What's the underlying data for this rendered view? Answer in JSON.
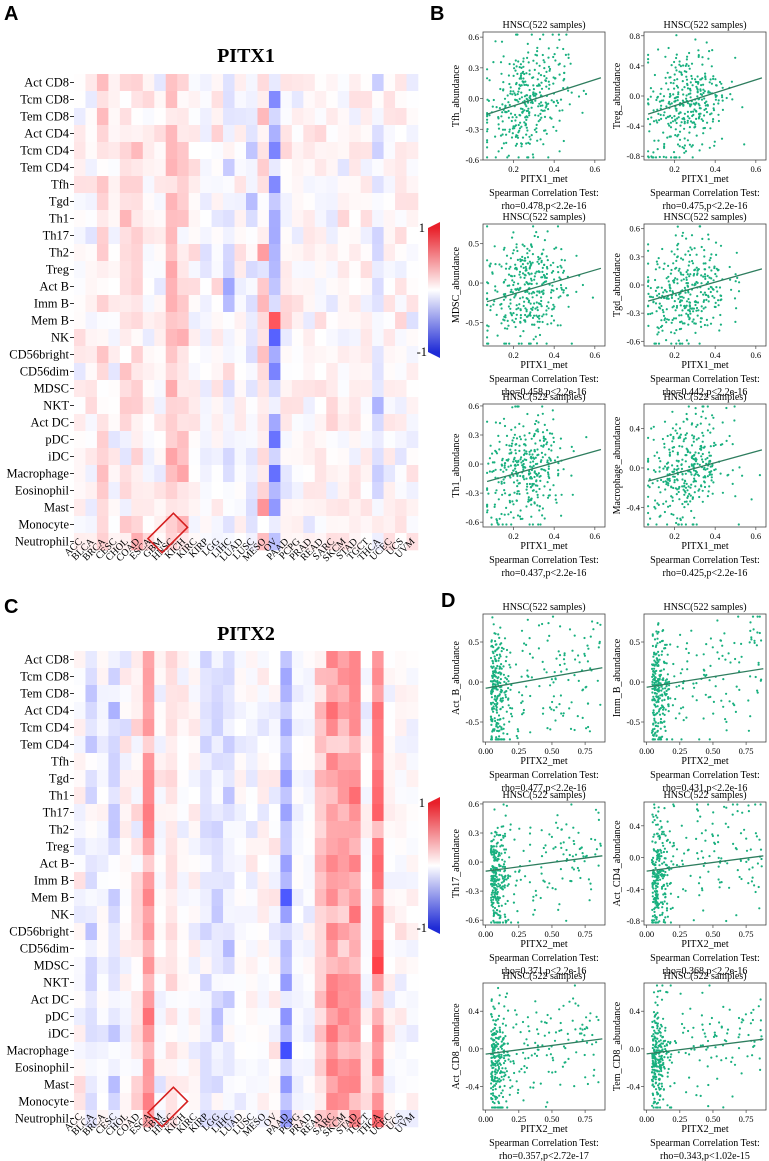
{
  "panels": {
    "A": "A",
    "B": "B",
    "C": "C",
    "D": "D"
  },
  "heatmaps": [
    {
      "id": "pitx1",
      "title": "PITX1",
      "highlight": "HNSC",
      "legend_max": "1",
      "legend_min": "-1",
      "rows": [
        "Act CD8",
        "Tcm CD8",
        "Tem CD8",
        "Act CD4",
        "Tcm CD4",
        "Tem CD4",
        "Tfh",
        "Tgd",
        "Th1",
        "Th17",
        "Th2",
        "Treg",
        "Act B",
        "Imm B",
        "Mem B",
        "NK",
        "CD56bright",
        "CD56dim",
        "MDSC",
        "NKT",
        "Act DC",
        "pDC",
        "iDC",
        "Macrophage",
        "Eosinophil",
        "Mast",
        "Monocyte",
        "Neutrophil"
      ],
      "cols": [
        "ACC",
        "BLCA",
        "BRCA",
        "CESC",
        "CHOL",
        "COAD",
        "ESCA",
        "GBM",
        "HNSC",
        "KICH",
        "KIRC",
        "KIRP",
        "LGG",
        "LIHC",
        "LUAD",
        "LUSC",
        "MESO",
        "OV",
        "PAAD",
        "PCPG",
        "PRAD",
        "READ",
        "SARC",
        "SKCM",
        "STAD",
        "TGCT",
        "THCA",
        "UCEC",
        "UCS",
        "UVM"
      ]
    },
    {
      "id": "pitx2",
      "title": "PITX2",
      "highlight": "HNSC",
      "legend_max": "1",
      "legend_min": "-1",
      "rows": [
        "Act CD8",
        "Tcm CD8",
        "Tem CD8",
        "Act CD4",
        "Tcm CD4",
        "Tem CD4",
        "Tfh",
        "Tgd",
        "Th1",
        "Th17",
        "Th2",
        "Treg",
        "Act B",
        "Imm B",
        "Mem B",
        "NK",
        "CD56bright",
        "CD56dim",
        "MDSC",
        "NKT",
        "Act DC",
        "pDC",
        "iDC",
        "Macrophage",
        "Eosinophil",
        "Mast",
        "Monocyte",
        "Neutrophil"
      ],
      "cols": [
        "ACC",
        "BLCA",
        "BRCA",
        "CESC",
        "CHOL",
        "COAD",
        "ESCA",
        "GBM",
        "HNSC",
        "KICH",
        "KIRC",
        "KIRP",
        "LGG",
        "LIHC",
        "LUAD",
        "LUSC",
        "MESO",
        "OV",
        "PAAD",
        "PCPG",
        "PRAD",
        "READ",
        "SARC",
        "SKCM",
        "STAD",
        "TGCT",
        "THCA",
        "UCEC",
        "UCS",
        "UVM"
      ]
    }
  ],
  "scatters": [
    {
      "id": "b1",
      "title": "HNSC(522 samples)",
      "xlabel": "PITX1_met",
      "ylabel": "Tfh_abundance",
      "test": "Spearman Correlation Test:",
      "stat": "rho=0.478,p<2.2e-16",
      "xticks": [
        "0.2",
        "0.4",
        "0.6"
      ],
      "yticks": [
        "-0.6",
        "-0.3",
        "0.0",
        "0.3",
        "0.6"
      ]
    },
    {
      "id": "b2",
      "title": "HNSC(522 samples)",
      "xlabel": "PITX1_met",
      "ylabel": "Treg_abundance",
      "test": "Spearman Correlation Test:",
      "stat": "rho=0.475,p<2.2e-16",
      "xticks": [
        "0.2",
        "0.4",
        "0.6"
      ],
      "yticks": [
        "-0.8",
        "-0.4",
        "0.0",
        "0.4",
        "0.8"
      ]
    },
    {
      "id": "b3",
      "title": "HNSC(522 samples)",
      "xlabel": "PITX1_met",
      "ylabel": "MDSC_abundance",
      "test": "Spearman Correlation Test:",
      "stat": "rho=0.458,p<2.2e-16",
      "xticks": [
        "0.2",
        "0.4",
        "0.6"
      ],
      "yticks": [
        "-0.5",
        "0.0",
        "0.5"
      ]
    },
    {
      "id": "b4",
      "title": "HNSC(522 samples)",
      "xlabel": "PITX1_met",
      "ylabel": "Tgd_abundance",
      "test": "Spearman Correlation Test:",
      "stat": "rho=0.442,p<2.2e-16",
      "xticks": [
        "0.2",
        "0.4",
        "0.6"
      ],
      "yticks": [
        "-0.6",
        "-0.3",
        "0.0",
        "0.3",
        "0.6"
      ]
    },
    {
      "id": "b5",
      "title": "HNSC(522 samples)",
      "xlabel": "PITX1_met",
      "ylabel": "Th1_abundance",
      "test": "Spearman Correlation Test:",
      "stat": "rho=0.437,p<2.2e-16",
      "xticks": [
        "0.2",
        "0.4",
        "0.6"
      ],
      "yticks": [
        "-0.6",
        "-0.3",
        "0.0",
        "0.3",
        "0.6"
      ]
    },
    {
      "id": "b6",
      "title": "HNSC(522 samples)",
      "xlabel": "PITX1_met",
      "ylabel": "Macrophage_abundance",
      "test": "Spearman Correlation Test:",
      "stat": "rho=0.425,p<2.2e-16",
      "xticks": [
        "0.2",
        "0.4",
        "0.6"
      ],
      "yticks": [
        "-0.4",
        "0.0",
        "0.4"
      ]
    },
    {
      "id": "d1",
      "title": "HNSC(522 samples)",
      "xlabel": "PITX2_met",
      "ylabel": "Act_B_abundance",
      "test": "Spearman Correlation Test:",
      "stat": "rho=0.477,p<2.2e-16",
      "xticks": [
        "0.00",
        "0.25",
        "0.50",
        "0.75"
      ],
      "yticks": [
        "-0.5",
        "0.0",
        "0.5"
      ]
    },
    {
      "id": "d2",
      "title": "HNSC(522 samples)",
      "xlabel": "PITX2_met",
      "ylabel": "Imm_B_abundance",
      "test": "Spearman Correlation Test:",
      "stat": "rho=0.431,p<2.2e-16",
      "xticks": [
        "0.00",
        "0.25",
        "0.50",
        "0.75"
      ],
      "yticks": [
        "-0.5",
        "0.0",
        "0.5"
      ]
    },
    {
      "id": "d3",
      "title": "HNSC(522 samples)",
      "xlabel": "PITX2_met",
      "ylabel": "Th17_abundance",
      "test": "Spearman Correlation Test:",
      "stat": "rho=0.371,p<2.2e-16",
      "xticks": [
        "0.00",
        "0.25",
        "0.50",
        "0.75"
      ],
      "yticks": [
        "-0.6",
        "-0.3",
        "0.0",
        "0.3",
        "0.6"
      ]
    },
    {
      "id": "d4",
      "title": "HNSC(522 samples)",
      "xlabel": "PITX2_met",
      "ylabel": "Act_CD4_abundance",
      "test": "Spearman Correlation Test:",
      "stat": "rho=0.368,p<2.2e-16",
      "xticks": [
        "0.00",
        "0.25",
        "0.50",
        "0.75"
      ],
      "yticks": [
        "-0.8",
        "-0.4",
        "0.0",
        "0.4"
      ]
    },
    {
      "id": "d5",
      "title": "HNSC(522 samples)",
      "xlabel": "PITX2_met",
      "ylabel": "Act_CD8_abundance",
      "test": "Spearman Correlation Test:",
      "stat": "rho=0.357,p<2.72e-17",
      "xticks": [
        "0.00",
        "0.25",
        "0.50",
        "0.75"
      ],
      "yticks": [
        "-0.4",
        "0.0",
        "0.4"
      ]
    },
    {
      "id": "d6",
      "title": "HNSC(522 samples)",
      "xlabel": "PITX2_met",
      "ylabel": "Tem_CD8_abundance",
      "test": "Spearman Correlation Test:",
      "stat": "rho=0.343,p<1.02e-15",
      "xticks": [
        "0.00",
        "0.25",
        "0.50",
        "0.75"
      ],
      "yticks": [
        "-0.4",
        "0.0",
        "0.4"
      ]
    }
  ],
  "colors": {
    "positive": "#e8202a",
    "negative": "#1f2bd6",
    "neutral": "#ffffff",
    "points": "#19b07f",
    "line": "#2e7d5e",
    "highlight_box": "#d62020"
  },
  "chart_data": [
    {
      "type": "heatmap",
      "title": "PITX1",
      "value_range": [
        -1,
        1
      ]
    },
    {
      "type": "heatmap",
      "title": "PITX2",
      "value_range": [
        -1,
        1
      ]
    },
    {
      "type": "scatter",
      "title": "HNSC(522 samples)",
      "x": "PITX1_met",
      "y": "Tfh_abundance",
      "rho": 0.478,
      "xlim": [
        0.05,
        0.65
      ],
      "ylim": [
        -0.6,
        0.65
      ]
    },
    {
      "type": "scatter",
      "title": "HNSC(522 samples)",
      "x": "PITX1_met",
      "y": "Treg_abundance",
      "rho": 0.475,
      "xlim": [
        0.05,
        0.65
      ],
      "ylim": [
        -0.85,
        0.85
      ]
    },
    {
      "type": "scatter",
      "title": "HNSC(522 samples)",
      "x": "PITX1_met",
      "y": "MDSC_abundance",
      "rho": 0.458,
      "xlim": [
        0.05,
        0.65
      ],
      "ylim": [
        -0.8,
        0.75
      ]
    },
    {
      "type": "scatter",
      "title": "HNSC(522 samples)",
      "x": "PITX1_met",
      "y": "Tgd_abundance",
      "rho": 0.442,
      "xlim": [
        0.05,
        0.65
      ],
      "ylim": [
        -0.65,
        0.65
      ]
    },
    {
      "type": "scatter",
      "title": "HNSC(522 samples)",
      "x": "PITX1_met",
      "y": "Th1_abundance",
      "rho": 0.437,
      "xlim": [
        0.05,
        0.65
      ],
      "ylim": [
        -0.65,
        0.62
      ]
    },
    {
      "type": "scatter",
      "title": "HNSC(522 samples)",
      "x": "PITX1_met",
      "y": "Macrophage_abundance",
      "rho": 0.425,
      "xlim": [
        0.05,
        0.65
      ],
      "ylim": [
        -0.6,
        0.65
      ]
    },
    {
      "type": "scatter",
      "title": "HNSC(522 samples)",
      "x": "PITX2_met",
      "y": "Act_B_abundance",
      "rho": 0.477,
      "xlim": [
        -0.02,
        0.9
      ],
      "ylim": [
        -0.75,
        0.85
      ]
    },
    {
      "type": "scatter",
      "title": "HNSC(522 samples)",
      "x": "PITX2_met",
      "y": "Imm_B_abundance",
      "rho": 0.431,
      "xlim": [
        -0.02,
        0.9
      ],
      "ylim": [
        -0.75,
        0.85
      ]
    },
    {
      "type": "scatter",
      "title": "HNSC(522 samples)",
      "x": "PITX2_met",
      "y": "Th17_abundance",
      "rho": 0.371,
      "xlim": [
        -0.02,
        0.9
      ],
      "ylim": [
        -0.65,
        0.62
      ]
    },
    {
      "type": "scatter",
      "title": "HNSC(522 samples)",
      "x": "PITX2_met",
      "y": "Act_CD4_abundance",
      "rho": 0.368,
      "xlim": [
        -0.02,
        0.9
      ],
      "ylim": [
        -0.85,
        0.7
      ]
    },
    {
      "type": "scatter",
      "title": "HNSC(522 samples)",
      "x": "PITX2_met",
      "y": "Act_CD8_abundance",
      "rho": 0.357,
      "xlim": [
        -0.02,
        0.9
      ],
      "ylim": [
        -0.65,
        0.7
      ]
    },
    {
      "type": "scatter",
      "title": "HNSC(522 samples)",
      "x": "PITX2_met",
      "y": "Tem_CD8_abundance",
      "rho": 0.343,
      "xlim": [
        -0.02,
        0.9
      ],
      "ylim": [
        -0.65,
        0.7
      ]
    }
  ]
}
